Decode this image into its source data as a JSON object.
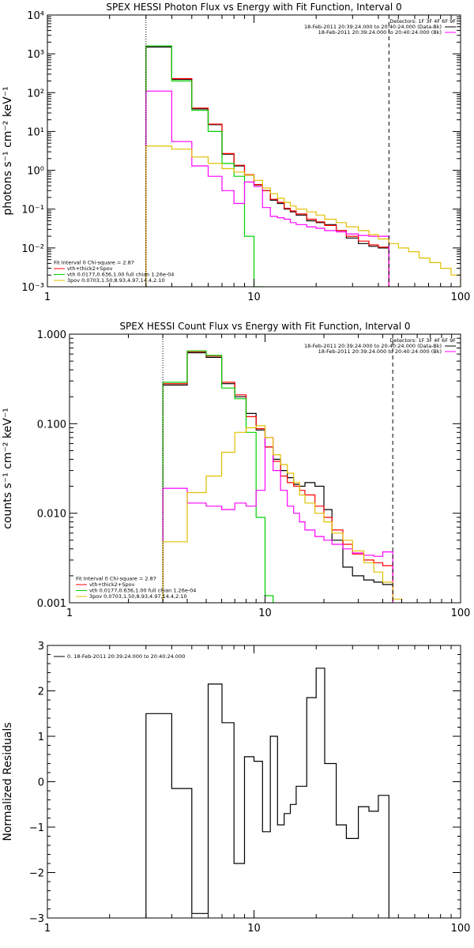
{
  "chart_data": [
    {
      "type": "line",
      "title": "SPEX HESSI Photon Flux vs Energy with Fit Function, Interval 0",
      "ylabel": "photons s⁻¹ cm⁻² keV⁻¹",
      "xscale": "log",
      "yscale": "log",
      "xlim": [
        1,
        100
      ],
      "ylim": [
        0.001,
        10000
      ],
      "xticks": [
        1,
        10,
        100
      ],
      "xtick_labels": [
        "1",
        "10",
        "100"
      ],
      "yticks": [
        0.001,
        0.01,
        0.1,
        1,
        10,
        100,
        1000,
        10000
      ],
      "ytick_labels": [
        "10⁻³",
        "10⁻²",
        "10⁻¹",
        "10⁰",
        "10¹",
        "10²",
        "10³",
        "10⁴"
      ],
      "vlines": [
        {
          "x": 3,
          "style": "dotted",
          "color": "#000000"
        },
        {
          "x": 45,
          "style": "dashed",
          "color": "#000000"
        }
      ],
      "header_text": [
        "Detectors: 1F 3F 4F 6F 9F",
        "18-Feb-2011 20:39:24.000 to 20:40:24.000 (Data-Bk)",
        "18-Feb-2011 20:39:24.000 to 20:40:24.000 (Bk)"
      ],
      "header_colors": [
        "",
        "#000000",
        "#ff00ff"
      ],
      "legend": {
        "placement": "bottom-left",
        "entries": [
          {
            "text": "Fit Interval 0   Chi-square = 2.87",
            "color": ""
          },
          {
            "text": "vth+thick2+Spov",
            "color": "#ff0000"
          },
          {
            "text": "vth 0.0177,0.636,1.00   full chian 1.26e-04",
            "color": "#00d000"
          },
          {
            "text": "3pov 0.0703,1.50,8.93,4.97,14.4,2.10",
            "color": "#e0c000"
          }
        ]
      },
      "series": [
        {
          "color": "#000000",
          "edges": [
            3,
            4,
            5,
            6,
            7,
            8,
            9,
            10,
            11,
            12,
            13,
            14,
            15,
            16,
            18,
            20,
            22,
            25,
            28,
            32,
            36,
            40,
            45
          ],
          "values": [
            1500,
            220,
            38,
            15,
            2.6,
            1.3,
            0.75,
            0.42,
            0.3,
            0.17,
            0.14,
            0.1,
            0.085,
            0.07,
            0.05,
            0.045,
            0.04,
            0.028,
            0.018,
            0.013,
            0.011,
            0.01
          ]
        },
        {
          "color": "#ff0000",
          "edges": [
            3,
            4,
            5,
            6,
            7,
            8,
            9,
            10,
            11,
            12,
            13,
            14,
            15,
            16,
            18,
            20,
            22,
            25,
            28,
            32,
            36,
            40,
            45
          ],
          "values": [
            1600,
            230,
            40,
            15.5,
            2.7,
            1.35,
            0.77,
            0.43,
            0.3,
            0.18,
            0.15,
            0.105,
            0.09,
            0.075,
            0.055,
            0.047,
            0.038,
            0.028,
            0.02,
            0.015,
            0.012,
            0.0105
          ]
        },
        {
          "color": "#00d000",
          "edges": [
            3,
            4,
            5,
            6,
            7,
            8,
            9,
            10,
            11
          ],
          "values": [
            1600,
            200,
            35,
            10,
            1.5,
            0.7,
            0.02,
            0.001
          ]
        },
        {
          "color": "#ff00ff",
          "edges": [
            3,
            4,
            5,
            6,
            7,
            8,
            9,
            10,
            11,
            12,
            13,
            14,
            15,
            16,
            18,
            20,
            22,
            25,
            28,
            32,
            36,
            40,
            45
          ],
          "values": [
            110,
            5.5,
            1.3,
            0.7,
            0.3,
            0.14,
            0.5,
            0.38,
            0.11,
            0.065,
            0.06,
            0.055,
            0.045,
            0.04,
            0.035,
            0.032,
            0.028,
            0.026,
            0.023,
            0.021,
            0.02,
            0.02
          ]
        },
        {
          "color": "#e0c000",
          "edges": [
            3,
            4,
            5,
            6,
            7,
            8,
            9,
            10,
            11,
            12,
            13,
            14,
            15,
            16,
            18,
            20,
            22,
            25,
            28,
            32,
            36,
            40,
            45,
            50,
            56,
            63,
            71,
            80,
            90,
            100
          ],
          "values": [
            4.2,
            3.5,
            2.2,
            1.5,
            1.1,
            0.9,
            0.75,
            0.55,
            0.35,
            0.25,
            0.19,
            0.15,
            0.12,
            0.1,
            0.085,
            0.07,
            0.055,
            0.045,
            0.035,
            0.028,
            0.022,
            0.017,
            0.013,
            0.01,
            0.008,
            0.0055,
            0.0042,
            0.003,
            0.002
          ]
        }
      ]
    },
    {
      "type": "line",
      "title": "SPEX HESSI Count Flux vs Energy with Fit Function, Interval 0",
      "ylabel": "counts s⁻¹ cm⁻² keV⁻¹",
      "xscale": "log",
      "yscale": "log",
      "xlim": [
        1,
        100
      ],
      "ylim": [
        0.001,
        1
      ],
      "xticks": [
        1,
        10,
        100
      ],
      "xtick_labels": [
        "1",
        "10",
        "100"
      ],
      "yticks": [
        0.001,
        0.01,
        0.1,
        1
      ],
      "ytick_labels": [
        "0.001",
        "0.010",
        "0.100",
        "1.000"
      ],
      "vlines": [
        {
          "x": 3,
          "style": "dotted",
          "color": "#000000"
        },
        {
          "x": 45,
          "style": "dashed",
          "color": "#000000"
        }
      ],
      "header_text": [
        "Detectors: 1F 3F 4F 6F 9F",
        "18-Feb-2011 20:39:24.000 to 20:40:24.000 (Data-Bk)",
        "18-Feb-2011 20:39:24.000 to 20:40:24.000 (Bk)"
      ],
      "header_colors": [
        "",
        "#000000",
        "#ff00ff"
      ],
      "legend": {
        "placement": "bottom-left",
        "entries": [
          {
            "text": "Fit Interval 0   Chi-square = 2.87",
            "color": ""
          },
          {
            "text": "vth+thick2+Spov",
            "color": "#ff0000"
          },
          {
            "text": "vth 0.0177,0.636,1.00   full chian 1.26e-04",
            "color": "#00d000"
          },
          {
            "text": "3pov 0.0703,1.50,8.93,4.97,14.4,2.10",
            "color": "#e0c000"
          }
        ]
      },
      "series": [
        {
          "color": "#000000",
          "edges": [
            3,
            4,
            5,
            6,
            7,
            8,
            9,
            10,
            11,
            12,
            13,
            14,
            15,
            16,
            18,
            20,
            22,
            25,
            28,
            32,
            36,
            40,
            45
          ],
          "values": [
            0.27,
            0.62,
            0.55,
            0.28,
            0.2,
            0.13,
            0.085,
            0.055,
            0.04,
            0.03,
            0.025,
            0.021,
            0.02,
            0.022,
            0.02,
            0.011,
            0.005,
            0.0025,
            0.002,
            0.0018,
            0.0017,
            0.0016
          ]
        },
        {
          "color": "#ff0000",
          "edges": [
            3,
            4,
            5,
            6,
            7,
            8,
            9,
            10,
            11,
            12,
            13,
            14,
            15,
            16,
            18,
            20,
            22,
            25,
            28,
            32,
            36,
            40,
            45
          ],
          "values": [
            0.28,
            0.64,
            0.57,
            0.29,
            0.21,
            0.12,
            0.088,
            0.055,
            0.038,
            0.026,
            0.022,
            0.02,
            0.018,
            0.016,
            0.012,
            0.009,
            0.0065,
            0.0045,
            0.0035,
            0.003,
            0.0028,
            0.0026
          ]
        },
        {
          "color": "#00d000",
          "edges": [
            3,
            4,
            5,
            6,
            7,
            8,
            9,
            10,
            11
          ],
          "values": [
            0.29,
            0.65,
            0.58,
            0.25,
            0.19,
            0.08,
            0.009,
            0.0012
          ]
        },
        {
          "color": "#ff00ff",
          "edges": [
            3,
            4,
            5,
            6,
            7,
            8,
            9,
            10,
            11,
            12,
            13,
            14,
            15,
            16,
            18,
            20,
            22,
            25,
            28,
            32,
            36,
            40,
            45
          ],
          "values": [
            0.019,
            0.013,
            0.012,
            0.011,
            0.013,
            0.012,
            0.018,
            0.07,
            0.03,
            0.018,
            0.012,
            0.01,
            0.008,
            0.0065,
            0.0055,
            0.005,
            0.0045,
            0.004,
            0.0036,
            0.0034,
            0.0033,
            0.0037
          ]
        },
        {
          "color": "#e0c000",
          "edges": [
            3,
            4,
            5,
            6,
            7,
            8,
            9,
            10,
            11,
            12,
            13,
            14,
            15,
            16,
            18,
            20,
            22,
            25,
            28,
            32,
            36,
            40,
            45,
            50,
            56,
            63
          ],
          "values": [
            0.0048,
            0.017,
            0.026,
            0.048,
            0.08,
            0.09,
            0.095,
            0.07,
            0.045,
            0.035,
            0.028,
            0.022,
            0.016,
            0.013,
            0.01,
            0.008,
            0.006,
            0.005,
            0.0038,
            0.0028,
            0.0022,
            0.0017,
            0.0011,
            0.0009,
            0.0007
          ]
        }
      ]
    },
    {
      "type": "line",
      "title": "",
      "ylabel": "Normalized Residuals",
      "xscale": "log",
      "yscale": "linear",
      "xlim": [
        1,
        100
      ],
      "ylim": [
        -3,
        3
      ],
      "xticks": [
        1,
        10,
        100
      ],
      "xtick_labels": [
        "1",
        "10",
        "100"
      ],
      "yticks": [
        -3,
        -2,
        -1,
        0,
        1,
        2,
        3
      ],
      "ytick_labels": [
        "−3",
        "−2",
        "−1",
        "0",
        "1",
        "2",
        "3"
      ],
      "vlines": [],
      "header_text": [],
      "header_colors": [],
      "legend": {
        "placement": "top-left",
        "entries": [
          {
            "text": "0. 18-Feb-2011 20:39:24.000 to 20:40:24.000",
            "color": "#000000"
          }
        ]
      },
      "series": [
        {
          "color": "#000000",
          "edges": [
            3,
            4,
            5,
            6,
            7,
            8,
            9,
            10,
            11,
            12,
            13,
            14,
            15,
            16,
            18,
            20,
            22,
            25,
            28,
            32,
            36,
            40,
            45
          ],
          "values": [
            1.5,
            -0.15,
            -2.9,
            2.15,
            1.3,
            -1.8,
            0.55,
            0.45,
            -1.1,
            1.0,
            -0.95,
            -0.7,
            -0.5,
            -0.1,
            1.85,
            2.5,
            0.4,
            -0.95,
            -1.25,
            -0.55,
            -0.65,
            -0.3
          ]
        }
      ]
    }
  ]
}
